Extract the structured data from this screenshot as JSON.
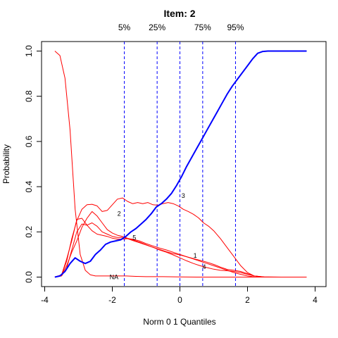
{
  "chart_data": {
    "type": "line",
    "title": "Item:  2",
    "xlabel": "Norm 0 1 Quantiles",
    "ylabel": "Probability",
    "xlim": [
      -4,
      4
    ],
    "ylim": [
      0,
      1
    ],
    "x_ticks": [
      -4,
      -2,
      0,
      2,
      4
    ],
    "y_ticks": [
      0.0,
      0.2,
      0.4,
      0.6,
      0.8,
      1.0
    ],
    "x_tick_labels": [
      "-4",
      "-2",
      "0",
      "2",
      "4"
    ],
    "y_tick_labels": [
      "0.0",
      "0.2",
      "0.4",
      "0.6",
      "0.8",
      "1.0"
    ],
    "grid": false,
    "quantiles": [
      {
        "label": "5%",
        "x": -1.645
      },
      {
        "label": "25%",
        "x": -0.674
      },
      {
        "label": "75%",
        "x": 0.674
      },
      {
        "label": "95%",
        "x": 1.645
      }
    ],
    "extra_vline": {
      "x": 0.0
    },
    "colors": {
      "key": "#0000ff",
      "distractor": "#ff0000",
      "quantile": "#0000ff"
    },
    "series": [
      {
        "name": "3",
        "role": "key",
        "label_at": [
          0.1,
          0.36
        ],
        "x": [
          -3.7,
          -3.55,
          -3.4,
          -3.25,
          -3.1,
          -2.95,
          -2.8,
          -2.65,
          -2.5,
          -2.35,
          -2.2,
          -2.05,
          -1.9,
          -1.75,
          -1.6,
          -1.45,
          -1.3,
          -1.15,
          -1.0,
          -0.85,
          -0.7,
          -0.55,
          -0.4,
          -0.25,
          -0.1,
          0.05,
          0.2,
          0.35,
          0.5,
          0.65,
          0.8,
          0.95,
          1.1,
          1.25,
          1.4,
          1.55,
          1.7,
          1.85,
          2.0,
          2.15,
          2.3,
          2.45,
          2.6,
          2.75,
          3.0,
          3.25,
          3.5,
          3.75
        ],
        "values": [
          0.0,
          0.005,
          0.025,
          0.06,
          0.085,
          0.07,
          0.06,
          0.07,
          0.1,
          0.12,
          0.145,
          0.155,
          0.16,
          0.165,
          0.18,
          0.2,
          0.215,
          0.235,
          0.255,
          0.28,
          0.31,
          0.325,
          0.345,
          0.37,
          0.405,
          0.445,
          0.49,
          0.53,
          0.57,
          0.61,
          0.65,
          0.69,
          0.73,
          0.77,
          0.81,
          0.845,
          0.875,
          0.905,
          0.935,
          0.965,
          0.99,
          0.998,
          1.0,
          1.0,
          1.0,
          1.0,
          1.0,
          1.0
        ]
      },
      {
        "name": "NA",
        "role": "distractor",
        "label_at": [
          -1.95,
          0.0
        ],
        "x": [
          -3.7,
          -3.55,
          -3.4,
          -3.25,
          -3.1,
          -2.95,
          -2.8,
          -2.65,
          -2.5,
          -2.2,
          -1.9,
          -1.6,
          -1.3,
          -1.0,
          -0.5,
          0.0,
          0.5,
          1.0,
          2.0,
          3.0,
          3.75
        ],
        "values": [
          1.0,
          0.98,
          0.88,
          0.65,
          0.3,
          0.1,
          0.03,
          0.01,
          0.005,
          0.005,
          0.005,
          0.005,
          0.003,
          0.002,
          0.002,
          0.001,
          0.0,
          0.0,
          0.0,
          0.0,
          0.0
        ]
      },
      {
        "name": "2",
        "role": "distractor",
        "label_at": [
          -1.8,
          0.28
        ],
        "x": [
          -3.7,
          -3.5,
          -3.35,
          -3.2,
          -3.05,
          -2.9,
          -2.75,
          -2.6,
          -2.45,
          -2.3,
          -2.15,
          -2.0,
          -1.85,
          -1.7,
          -1.55,
          -1.4,
          -1.25,
          -1.1,
          -0.95,
          -0.8,
          -0.65,
          -0.5,
          -0.35,
          -0.2,
          -0.05,
          0.1,
          0.25,
          0.4,
          0.55,
          0.7,
          0.85,
          1.0,
          1.2,
          1.4,
          1.6,
          1.8,
          2.0,
          2.2,
          2.5,
          3.0,
          3.75
        ],
        "values": [
          0.0,
          0.01,
          0.07,
          0.17,
          0.25,
          0.3,
          0.32,
          0.322,
          0.315,
          0.29,
          0.295,
          0.32,
          0.345,
          0.35,
          0.335,
          0.325,
          0.33,
          0.325,
          0.33,
          0.32,
          0.318,
          0.325,
          0.33,
          0.325,
          0.315,
          0.3,
          0.29,
          0.278,
          0.262,
          0.24,
          0.225,
          0.205,
          0.17,
          0.13,
          0.09,
          0.05,
          0.02,
          0.005,
          0.0,
          0.0,
          0.0
        ]
      },
      {
        "name": "5",
        "role": "distractor",
        "label_at": [
          -1.35,
          0.175
        ],
        "x": [
          -3.7,
          -3.5,
          -3.35,
          -3.2,
          -3.05,
          -2.9,
          -2.75,
          -2.6,
          -2.45,
          -2.3,
          -2.15,
          -2.0,
          -1.85,
          -1.7,
          -1.55,
          -1.4,
          -1.2,
          -1.0,
          -0.8,
          -0.6,
          -0.4,
          -0.2,
          0.0,
          0.2,
          0.4,
          0.6,
          0.8,
          1.0,
          1.2,
          1.4,
          1.6,
          1.8,
          2.0,
          2.2,
          2.5,
          3.0,
          3.75
        ],
        "values": [
          0.0,
          0.005,
          0.04,
          0.12,
          0.2,
          0.235,
          0.23,
          0.205,
          0.19,
          0.185,
          0.18,
          0.172,
          0.168,
          0.168,
          0.17,
          0.168,
          0.16,
          0.148,
          0.138,
          0.128,
          0.12,
          0.11,
          0.1,
          0.09,
          0.08,
          0.07,
          0.06,
          0.05,
          0.04,
          0.03,
          0.02,
          0.012,
          0.005,
          0.001,
          0.0,
          0.0,
          0.0
        ]
      },
      {
        "name": "1",
        "role": "distractor",
        "label_at": [
          0.45,
          0.095
        ],
        "x": [
          -3.7,
          -3.5,
          -3.35,
          -3.2,
          -3.05,
          -2.9,
          -2.75,
          -2.6,
          -2.45,
          -2.3,
          -2.15,
          -2.0,
          -1.85,
          -1.7,
          -1.55,
          -1.4,
          -1.2,
          -1.0,
          -0.8,
          -0.6,
          -0.4,
          -0.2,
          0.0,
          0.2,
          0.4,
          0.6,
          0.8,
          1.0,
          1.2,
          1.4,
          1.6,
          1.8,
          2.0,
          2.2,
          2.5,
          3.0,
          3.75
        ],
        "values": [
          0.0,
          0.01,
          0.08,
          0.16,
          0.255,
          0.26,
          0.23,
          0.24,
          0.225,
          0.2,
          0.19,
          0.18,
          0.175,
          0.175,
          0.17,
          0.162,
          0.152,
          0.142,
          0.132,
          0.122,
          0.112,
          0.104,
          0.098,
          0.09,
          0.082,
          0.074,
          0.066,
          0.056,
          0.044,
          0.034,
          0.03,
          0.025,
          0.015,
          0.005,
          0.0,
          0.0,
          0.0
        ]
      },
      {
        "name": "4",
        "role": "distractor",
        "label_at": [
          0.72,
          0.045
        ],
        "x": [
          -3.7,
          -3.5,
          -3.35,
          -3.2,
          -3.05,
          -2.9,
          -2.75,
          -2.6,
          -2.45,
          -2.3,
          -2.15,
          -2.0,
          -1.85,
          -1.7,
          -1.55,
          -1.4,
          -1.2,
          -1.0,
          -0.8,
          -0.6,
          -0.4,
          -0.2,
          0.0,
          0.2,
          0.4,
          0.6,
          0.8,
          1.0,
          1.2,
          1.4,
          1.6,
          1.8,
          2.0,
          2.2,
          2.5,
          3.0,
          3.75
        ],
        "values": [
          0.0,
          0.01,
          0.05,
          0.11,
          0.16,
          0.22,
          0.26,
          0.29,
          0.27,
          0.24,
          0.21,
          0.195,
          0.185,
          0.18,
          0.172,
          0.165,
          0.155,
          0.143,
          0.132,
          0.12,
          0.11,
          0.098,
          0.085,
          0.072,
          0.06,
          0.05,
          0.042,
          0.035,
          0.03,
          0.028,
          0.025,
          0.02,
          0.012,
          0.005,
          0.001,
          0.0,
          0.0
        ]
      }
    ]
  }
}
